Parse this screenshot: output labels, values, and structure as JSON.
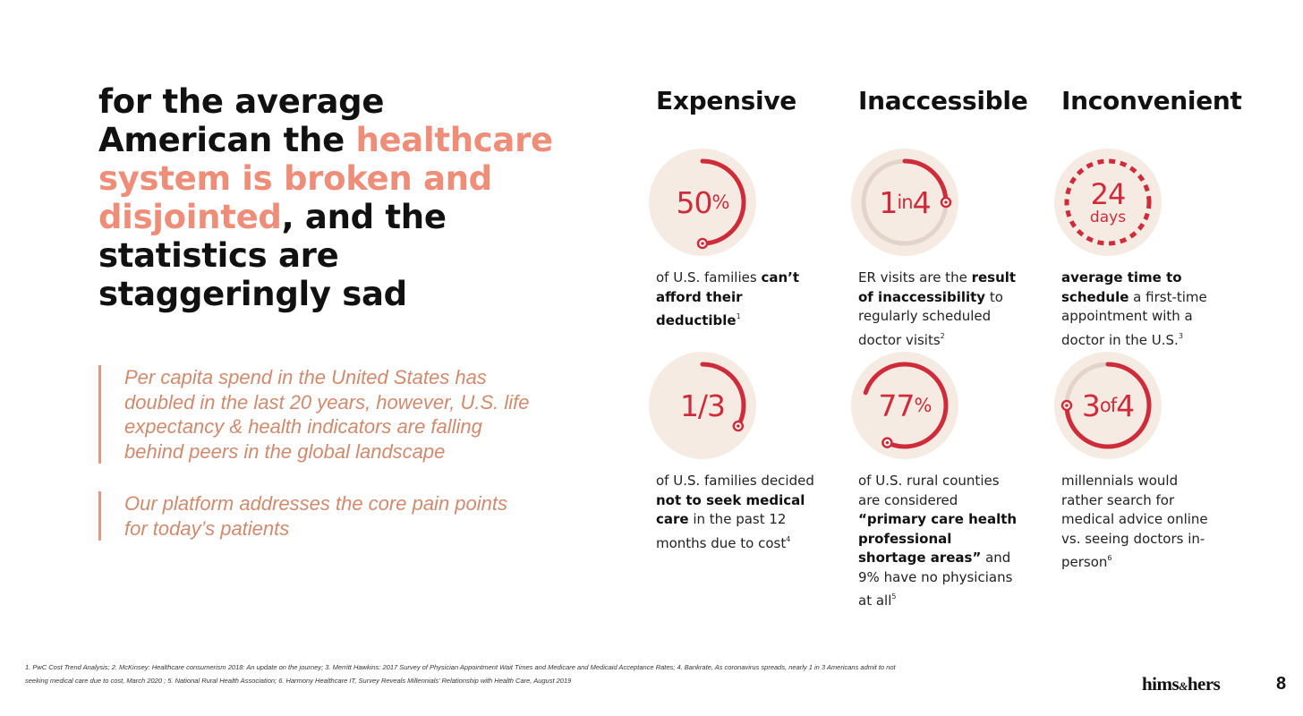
{
  "headline": {
    "part1": "for the average American the ",
    "accent": "healthcare system is broken and disjointed",
    "part2": ", and the statistics are staggeringly sad"
  },
  "quotes": [
    "Per capita spend in the United States has doubled in the last 20 years, however, U.S. life expectancy & health indicators are falling behind peers in the global landscape",
    "Our platform addresses the core pain points for today’s patients"
  ],
  "columns": [
    "Expensive",
    "Inaccessible",
    "Inconvenient"
  ],
  "stats": {
    "s1": {
      "value": "50",
      "unit": "%",
      "fraction": 0.5,
      "text1": "of U.S. families ",
      "bold1": "can’t afford their deductible",
      "sup": "1"
    },
    "s2": {
      "value": "1",
      "mid": "in",
      "value2": "4",
      "fraction": 0.25,
      "text1": "ER visits are the ",
      "bold1": "result of inaccessibility",
      "text2": " to regularly scheduled doctor visits",
      "sup": "2"
    },
    "s3": {
      "value": "24",
      "unit": "days",
      "bold1": "average time to schedule",
      "text2": " a first-time appointment with a doctor in the U.S.",
      "sup": "3"
    },
    "s4": {
      "value": "1/3",
      "fraction": 0.3333,
      "text1": "of U.S. families decided ",
      "bold1": "not to seek medical care",
      "text2": " in the past 12 months due to cost",
      "sup": "4"
    },
    "s5": {
      "value": "77",
      "unit": "%",
      "fraction": 0.77,
      "text1": "of U.S. rural counties are considered ",
      "bold1": "“primary care health professional shortage areas”",
      "text2": " and 9% have no physicians at all",
      "sup": "5"
    },
    "s6": {
      "value": "3",
      "mid": "of",
      "value2": "4",
      "fraction": 0.75,
      "text1": "millennials would rather search for medical advice online vs. seeing doctors in-person",
      "sup": "6"
    }
  },
  "footnote": "1. PwC Cost Trend Analysis; 2. McKinsey: Healthcare consumerism 2018: An update on the journey; 3. Merritt Hawkins: 2017 Survey of Physician Appointment Wait Times and Medicare and Medicaid Acceptance Rates; 4. Bankrate, As coronavirus spreads, nearly 1 in 3 Americans admit to not seeking medical care due to cost, March 2020 ; 5. National Rural Health Association; 6. Harmony Healthcare IT, Survey Reveals Millennials’ Relationship with Health Care, August 2019",
  "logo": {
    "left": "hims",
    "amp": "&",
    "right": "hers"
  },
  "page_number": "8",
  "colors": {
    "accent": "#ee8d78",
    "red": "#cf2c3b",
    "circle": "#f6ebe3",
    "track": "#e2d4ca"
  }
}
